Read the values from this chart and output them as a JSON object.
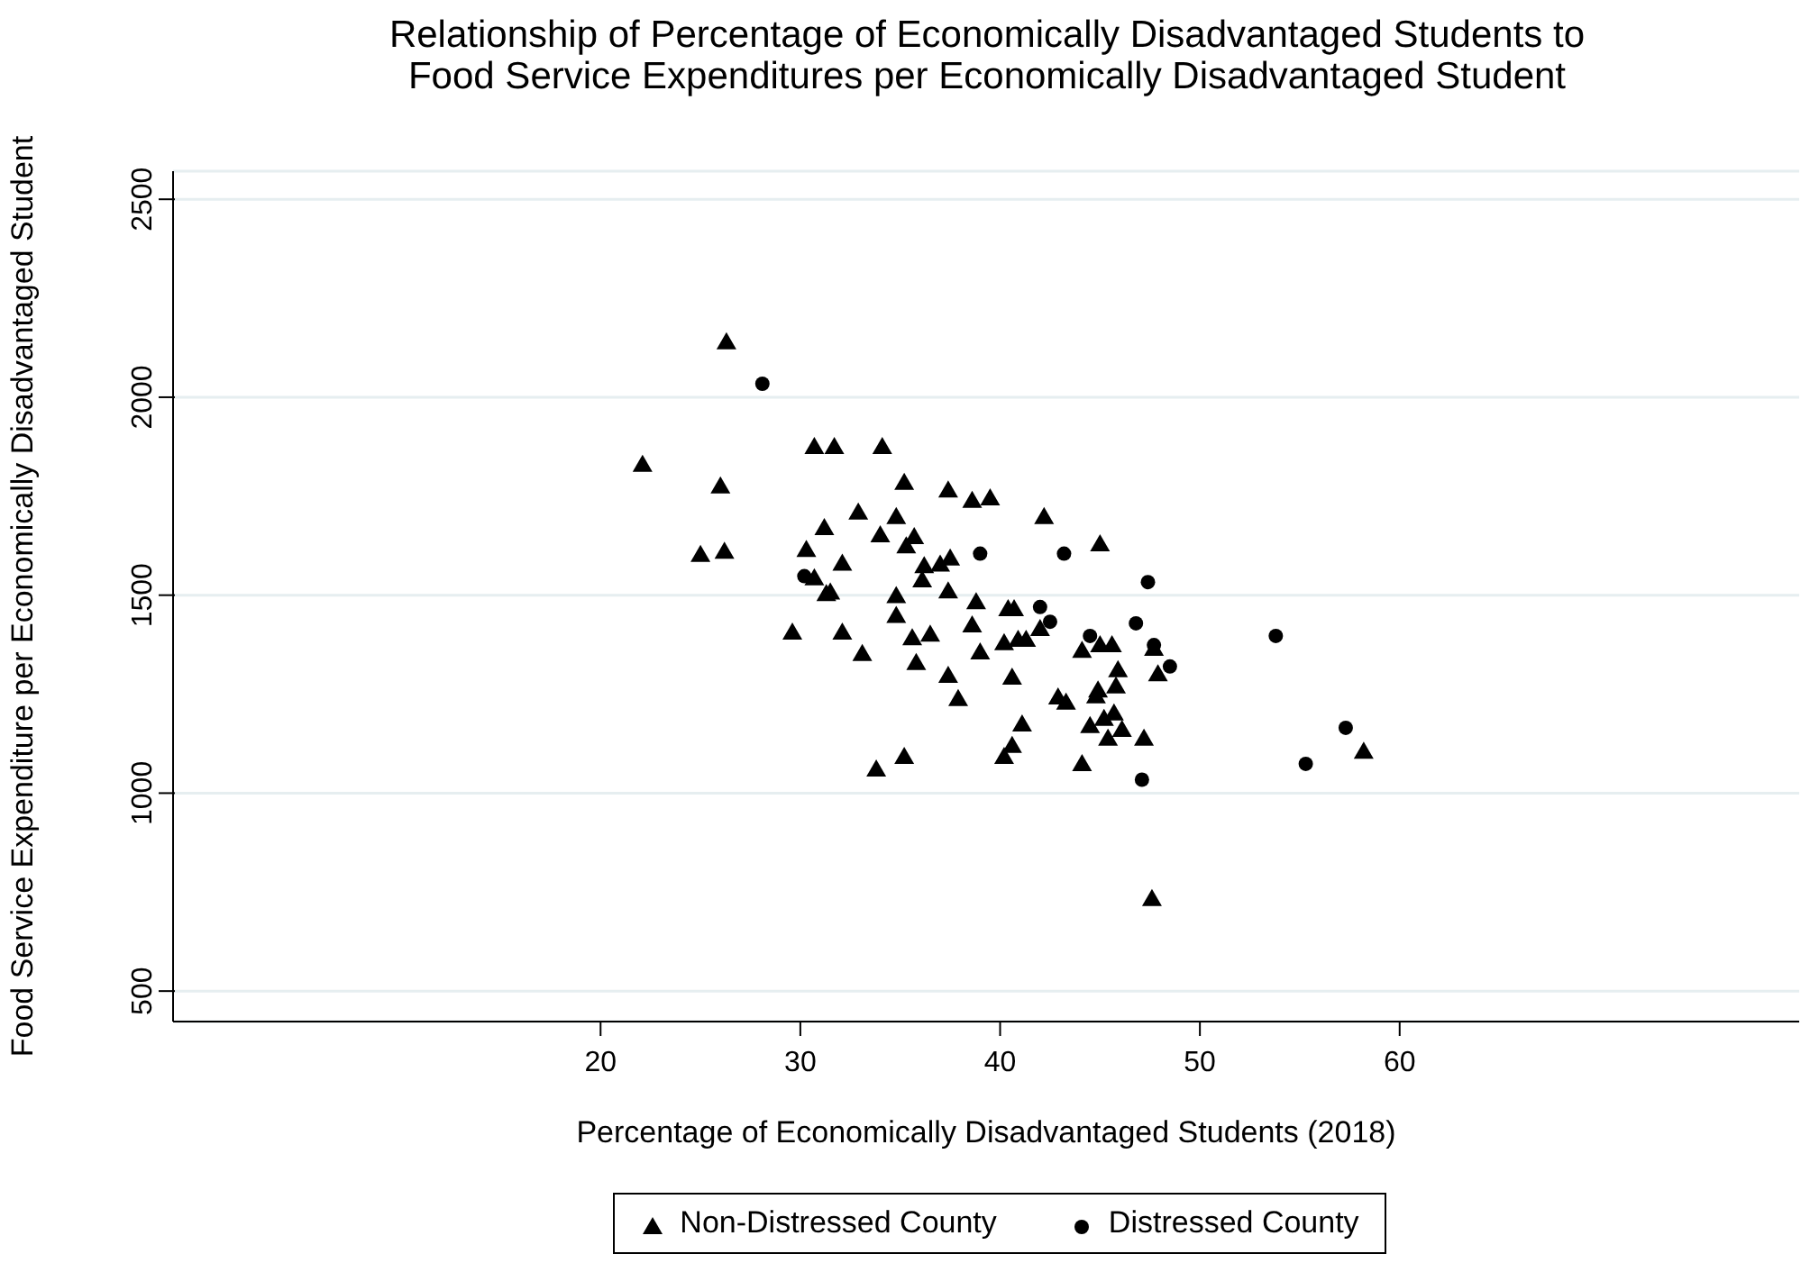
{
  "chart_data": {
    "type": "scatter",
    "title": "Relationship of Percentage of Economically Disadvantaged Students to\nFood Service Expenditures per Economically Disadvantaged Student",
    "xlabel": "Percentage of Economically Disadvantaged Students (2018)",
    "ylabel": "Food Service Expenditure per Economically Disadvantaged Student",
    "xlim": [
      -1.4,
      80
    ],
    "xticks": [
      20,
      30,
      40,
      50,
      60
    ],
    "ylim": [
      423,
      2571
    ],
    "yticks": [
      500,
      1000,
      1500,
      2000,
      2500
    ],
    "grid": "y",
    "legend": "bottom",
    "series": [
      {
        "name": "Non-Distressed County",
        "color": "#000000",
        "marker": "triangle",
        "x": [
          26.3,
          22.1,
          26.0,
          25.0,
          26.2,
          30.3,
          31.2,
          30.7,
          31.7,
          30.7,
          31.3,
          29.6,
          34.1,
          35.2,
          37.4,
          38.6,
          39.5,
          42.2,
          32.9,
          34.8,
          34.0,
          35.7,
          35.3,
          32.1,
          36.2,
          37.0,
          37.5,
          36.1,
          45.0,
          31.5,
          34.8,
          37.4,
          38.8,
          40.4,
          40.7,
          34.8,
          32.1,
          35.6,
          36.5,
          38.6,
          33.1,
          35.8,
          39.0,
          40.2,
          40.9,
          41.3,
          42.0,
          44.1,
          45.0,
          45.6,
          47.7,
          47.9,
          45.9,
          45.8,
          44.9,
          44.8,
          42.9,
          43.3,
          37.4,
          40.6,
          37.9,
          41.1,
          44.5,
          45.2,
          45.7,
          46.1,
          45.4,
          47.2,
          40.6,
          40.2,
          44.1,
          33.8,
          35.2,
          58.2,
          47.6
        ],
        "values": [
          2139,
          1830,
          1775,
          1602,
          1610,
          1615,
          1670,
          1875,
          1875,
          1543,
          1503,
          1406,
          1875,
          1784,
          1765,
          1739,
          1745,
          1698,
          1709,
          1698,
          1652,
          1647,
          1624,
          1580,
          1574,
          1578,
          1593,
          1538,
          1629,
          1507,
          1498,
          1510,
          1483,
          1465,
          1465,
          1448,
          1406,
          1392,
          1401,
          1424,
          1352,
          1329,
          1356,
          1379,
          1388,
          1388,
          1415,
          1360,
          1374,
          1374,
          1365,
          1301,
          1311,
          1270,
          1260,
          1245,
          1242,
          1229,
          1297,
          1292,
          1238,
          1174,
          1170,
          1188,
          1202,
          1160,
          1138,
          1138,
          1120,
          1092,
          1074,
          1060,
          1092,
          1105,
          733
        ]
      },
      {
        "name": "Distressed County",
        "color": "#000000",
        "marker": "circle",
        "x": [
          28.1,
          30.2,
          39.0,
          43.2,
          47.4,
          42.0,
          42.5,
          46.8,
          44.5,
          47.7,
          53.8,
          48.5,
          47.1,
          55.3,
          57.3
        ],
        "values": [
          2034,
          1548,
          1605,
          1605,
          1533,
          1470,
          1433,
          1429,
          1397,
          1374,
          1397,
          1320,
          1034,
          1074,
          1165
        ]
      }
    ]
  }
}
